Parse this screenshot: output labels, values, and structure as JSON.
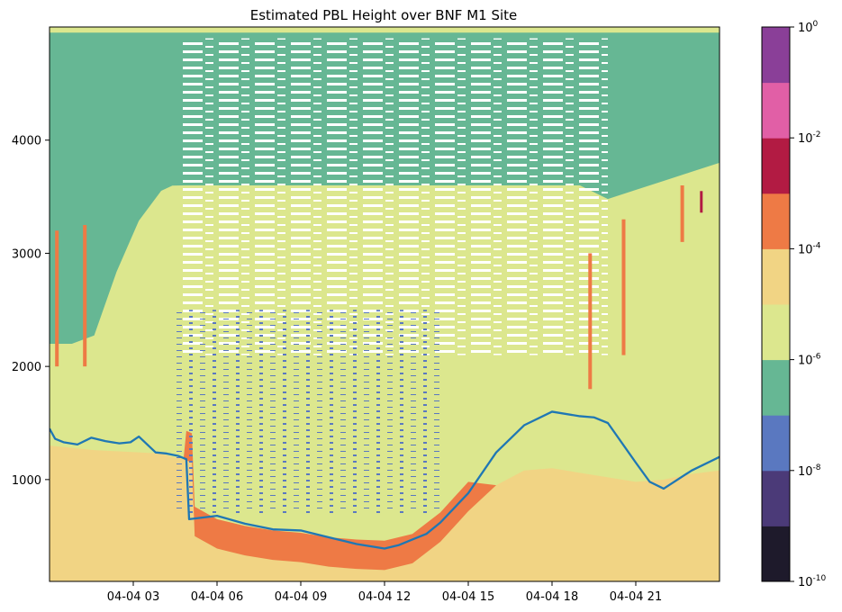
{
  "chart_data": {
    "type": "heatmap",
    "title": "Estimated PBL Height over BNF M1 Site",
    "xlabel": "",
    "ylabel": "",
    "x_range_hours": [
      0,
      24
    ],
    "ylim": [
      100,
      5000
    ],
    "x_tick_hours": [
      3,
      6,
      9,
      12,
      15,
      18,
      21
    ],
    "x_tick_labels": [
      "04-04 03",
      "04-04 06",
      "04-04 09",
      "04-04 12",
      "04-04 15",
      "04-04 18",
      "04-04 21"
    ],
    "y_ticks": [
      1000,
      2000,
      3000,
      4000
    ],
    "y_tick_labels": [
      "1000",
      "2000",
      "3000",
      "4000"
    ],
    "colorbar": {
      "scale": "log",
      "range": [
        1e-10,
        1
      ],
      "levels": [
        1e-10,
        1e-09,
        1e-08,
        1e-07,
        1e-06,
        1e-05,
        0.0001,
        0.001,
        0.01,
        0.1,
        1
      ],
      "colors": [
        "#1e1a2b",
        "#4b3a78",
        "#5a78c0",
        "#66b794",
        "#dce78e",
        "#f1d484",
        "#ee7a45",
        "#b21b43",
        "#e15fa6",
        "#8a3f98"
      ],
      "tick_labels": [
        {
          "base": "10",
          "exp": "-10"
        },
        {
          "base": "10",
          "exp": "-8"
        },
        {
          "base": "10",
          "exp": "-6"
        },
        {
          "base": "10",
          "exp": "-4"
        },
        {
          "base": "10",
          "exp": "-2"
        },
        {
          "base": "10",
          "exp": "0"
        }
      ],
      "tick_values": [
        -10,
        -8,
        -6,
        -4,
        -2,
        0
      ]
    },
    "pbl_series": {
      "name": "PBL height",
      "color": "#1f77b4",
      "x_hours": [
        0,
        0.2,
        0.5,
        1,
        1.5,
        2,
        2.5,
        2.9,
        3.2,
        3.8,
        4.2,
        4.6,
        4.9,
        5,
        6,
        7,
        8,
        9,
        10,
        11,
        12,
        12.5,
        13,
        13.5,
        14,
        15,
        16,
        17,
        18,
        19,
        19.5,
        20,
        21,
        21.5,
        22,
        23,
        24
      ],
      "y_m": [
        1450,
        1360,
        1330,
        1310,
        1370,
        1340,
        1320,
        1330,
        1380,
        1240,
        1230,
        1210,
        1180,
        650,
        680,
        610,
        560,
        550,
        490,
        430,
        390,
        420,
        470,
        520,
        620,
        880,
        1240,
        1480,
        1600,
        1560,
        1550,
        1500,
        1150,
        980,
        920,
        1080,
        1200
      ]
    },
    "pbl_layer_base_m": [
      1300,
      1280,
      1260,
      1250,
      1240,
      1230,
      1200,
      1180,
      1170,
      1160,
      1150,
      500,
      390,
      330,
      290,
      270,
      230,
      210,
      200,
      260,
      450,
      720,
      950,
      1080,
      1100,
      1060,
      1020,
      980,
      1000,
      1050,
      1080
    ],
    "cloud_top_m": 4950,
    "pbl_layer_hours": [
      0,
      0.8,
      1.6,
      2.4,
      3.2,
      4,
      4.4,
      4.8,
      4.9,
      5.0,
      5.1,
      5.2,
      6,
      7,
      8,
      9,
      10,
      11,
      12,
      13,
      14,
      15,
      16,
      17,
      18,
      19,
      20,
      21,
      22,
      23,
      24
    ]
  }
}
